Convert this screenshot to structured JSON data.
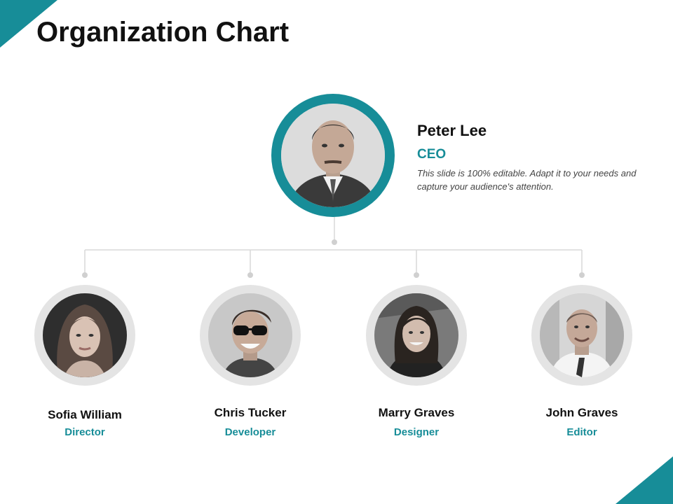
{
  "title": "Organization Chart",
  "accent_color": "#178d98",
  "ceo": {
    "name": "Peter Lee",
    "role": "CEO",
    "description": "This slide is 100% editable. Adapt it to your needs and capture your audience's attention."
  },
  "members": [
    {
      "name": "Sofia William",
      "role": "Director"
    },
    {
      "name": "Chris Tucker",
      "role": "Developer"
    },
    {
      "name": "Marry Graves",
      "role": "Designer"
    },
    {
      "name": "John Graves",
      "role": "Editor"
    }
  ]
}
